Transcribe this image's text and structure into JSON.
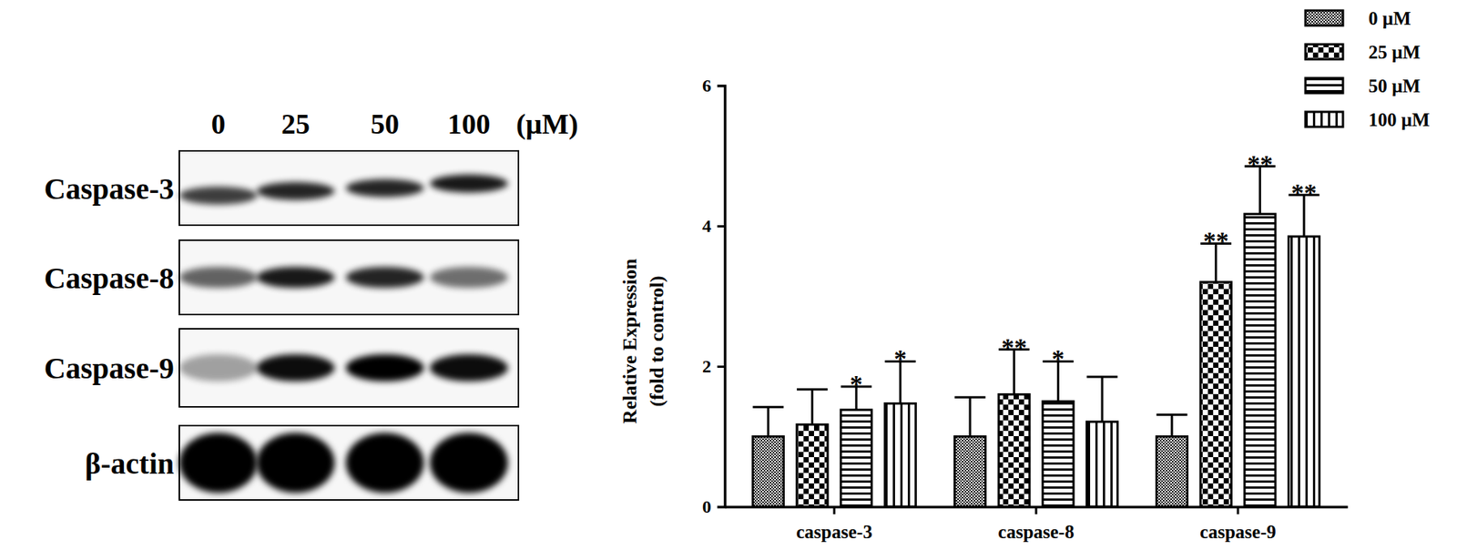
{
  "blot": {
    "lanes": [
      "0",
      "25",
      "50",
      "100"
    ],
    "unit": "(μM)",
    "rows": [
      "Caspase-3",
      "Caspase-8",
      "Caspase-9",
      "β-actin"
    ]
  },
  "chart_data": {
    "type": "bar",
    "categories": [
      "caspase-3",
      "caspase-8",
      "caspase-9"
    ],
    "ylabel": [
      "Relative Expression",
      "(fold to control)"
    ],
    "ylim": [
      0,
      6
    ],
    "yticks": [
      0,
      2,
      4,
      6
    ],
    "legend": "top-right",
    "series": [
      {
        "name": "0 μM",
        "color": "#000000",
        "values": [
          1.0,
          1.0,
          1.0
        ],
        "errors": [
          0.42,
          0.56,
          0.31
        ],
        "significance": [
          null,
          null,
          null
        ]
      },
      {
        "name": "25 μM",
        "color": "#000000",
        "values": [
          1.17,
          1.6,
          3.2
        ],
        "errors": [
          0.5,
          0.64,
          0.55
        ],
        "significance": [
          null,
          "**",
          "**"
        ]
      },
      {
        "name": "50 μM",
        "color": "#000000",
        "values": [
          1.38,
          1.5,
          4.17
        ],
        "errors": [
          0.33,
          0.57,
          0.68
        ],
        "significance": [
          "*",
          "*",
          "**"
        ]
      },
      {
        "name": "100 μM",
        "color": "#000000",
        "values": [
          1.47,
          1.21,
          3.85
        ],
        "errors": [
          0.6,
          0.64,
          0.59
        ],
        "significance": [
          "*",
          null,
          "**"
        ]
      }
    ]
  }
}
